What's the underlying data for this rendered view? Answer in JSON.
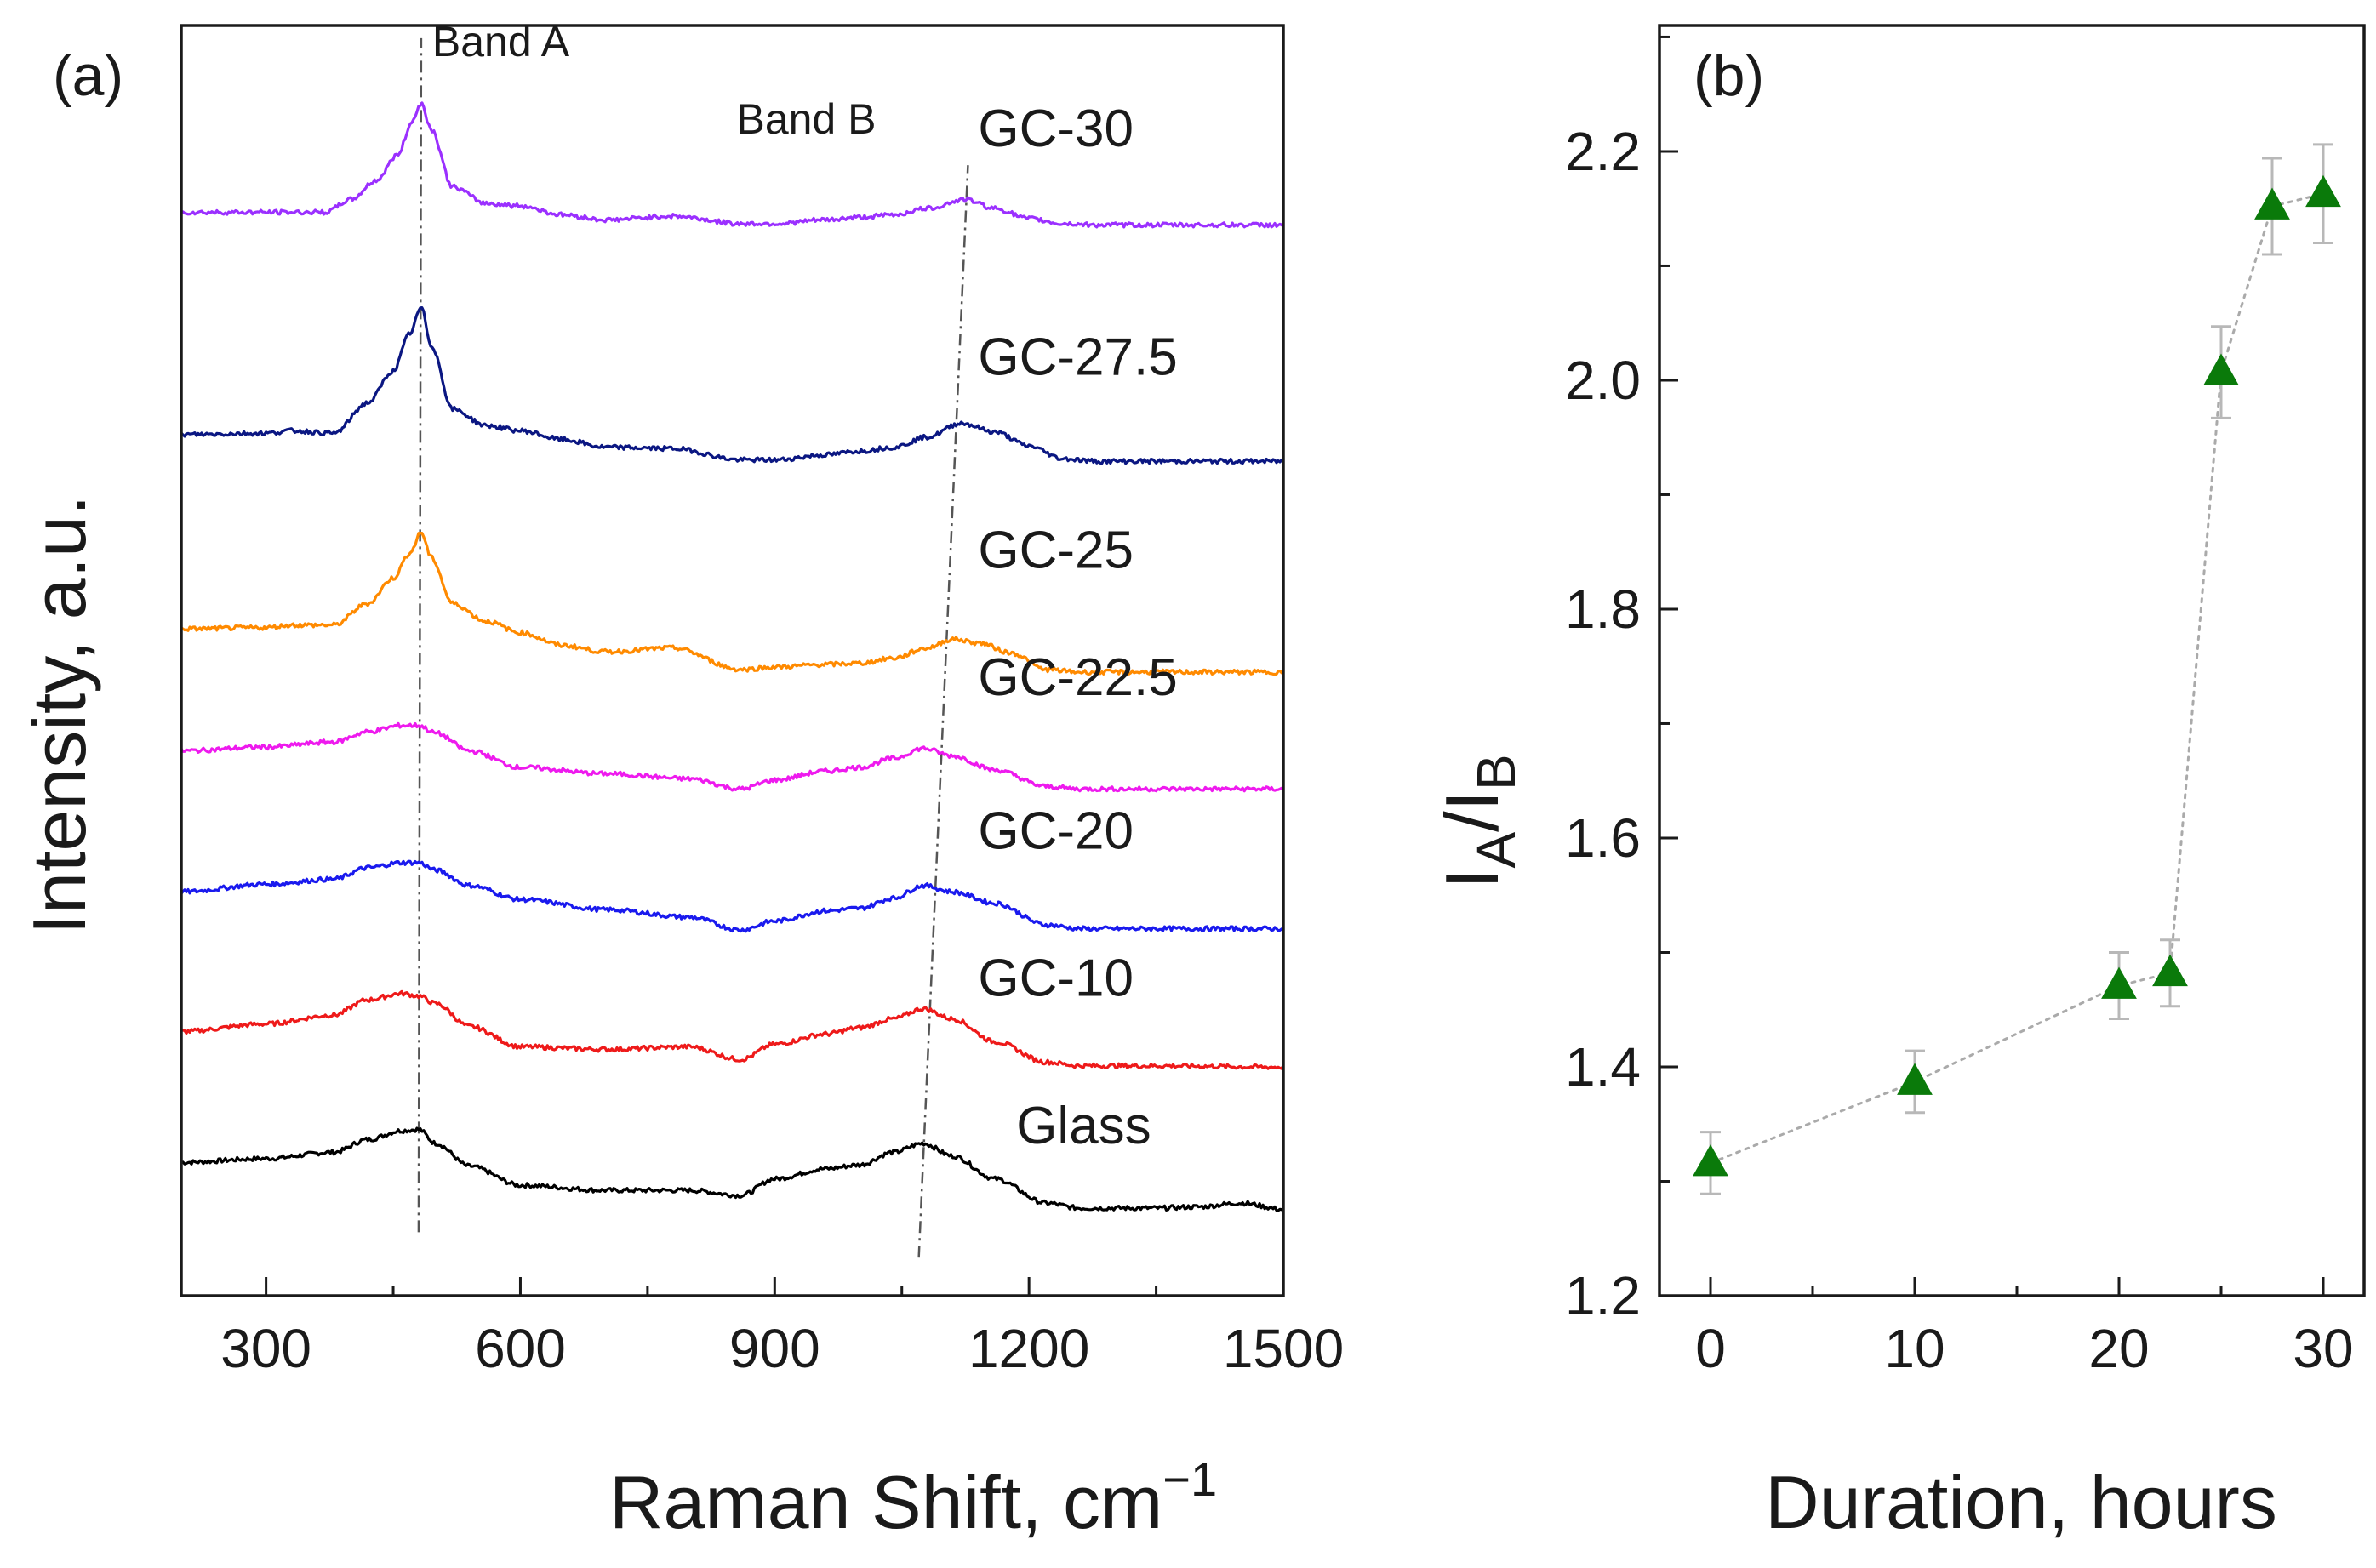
{
  "chart_data": [
    {
      "panel_label": "(a)",
      "type": "line",
      "xlabel": "Raman Shift, cm",
      "xlabel_superscript": "−1",
      "ylabel": "Intensity, a.u.",
      "xlim": [
        200,
        1500
      ],
      "ylim": [
        0,
        100
      ],
      "xticks": [
        300,
        600,
        900,
        1200,
        1500
      ],
      "xtick_labels": [
        "300",
        "600",
        "900",
        "1200",
        "1500"
      ],
      "y_tick_labels_shown": false,
      "annotations": [
        {
          "text": "Band A",
          "line_from": [
            480,
            5
          ],
          "line_to": [
            483,
            99
          ]
        },
        {
          "text": "Band B",
          "line_from": [
            1070,
            3
          ],
          "line_to": [
            1128,
            89
          ]
        }
      ],
      "series": [
        {
          "name": "Glass",
          "color": "#000000",
          "offset": 10.5,
          "points": [
            [
              200,
              0
            ],
            [
              300,
              0.3
            ],
            [
              380,
              0.8
            ],
            [
              420,
              1.8
            ],
            [
              460,
              2.5
            ],
            [
              480,
              2.6
            ],
            [
              500,
              1.5
            ],
            [
              540,
              -0.3
            ],
            [
              600,
              -1.8
            ],
            [
              700,
              -2.2
            ],
            [
              800,
              -2.2
            ],
            [
              860,
              -2.6
            ],
            [
              900,
              -1.3
            ],
            [
              960,
              -0.5
            ],
            [
              1000,
              -0.2
            ],
            [
              1040,
              0.8
            ],
            [
              1075,
              1.5
            ],
            [
              1110,
              0.5
            ],
            [
              1160,
              -1.3
            ],
            [
              1220,
              -3.2
            ],
            [
              1260,
              -3.6
            ],
            [
              1350,
              -3.6
            ],
            [
              1400,
              -3.5
            ],
            [
              1450,
              -3.2
            ],
            [
              1500,
              -3.7
            ]
          ]
        },
        {
          "name": "GC-10",
          "color": "#ee1a1a",
          "offset": 20.8,
          "points": [
            [
              200,
              0
            ],
            [
              300,
              0.6
            ],
            [
              380,
              1.3
            ],
            [
              420,
              2.5
            ],
            [
              460,
              3.0
            ],
            [
              480,
              2.8
            ],
            [
              500,
              2.2
            ],
            [
              540,
              0.4
            ],
            [
              600,
              -1.2
            ],
            [
              700,
              -1.4
            ],
            [
              800,
              -1.2
            ],
            [
              860,
              -2.2
            ],
            [
              900,
              -1.0
            ],
            [
              960,
              -0.2
            ],
            [
              1000,
              0.3
            ],
            [
              1040,
              1.0
            ],
            [
              1075,
              1.8
            ],
            [
              1110,
              1.0
            ],
            [
              1160,
              -0.8
            ],
            [
              1220,
              -2.4
            ],
            [
              1260,
              -2.7
            ],
            [
              1350,
              -2.7
            ],
            [
              1500,
              -2.8
            ]
          ]
        },
        {
          "name": "GC-20",
          "color": "#1a1aee",
          "offset": 31.8,
          "points": [
            [
              200,
              0
            ],
            [
              300,
              0.6
            ],
            [
              380,
              1.0
            ],
            [
              420,
              1.9
            ],
            [
              460,
              2.3
            ],
            [
              480,
              2.3
            ],
            [
              500,
              1.7
            ],
            [
              540,
              0.5
            ],
            [
              600,
              -0.6
            ],
            [
              700,
              -1.4
            ],
            [
              800,
              -2.0
            ],
            [
              860,
              -3.0
            ],
            [
              900,
              -2.3
            ],
            [
              960,
              -1.5
            ],
            [
              1000,
              -1.3
            ],
            [
              1040,
              -0.5
            ],
            [
              1075,
              0.5
            ],
            [
              1110,
              0.0
            ],
            [
              1160,
              -0.9
            ],
            [
              1220,
              -2.6
            ],
            [
              1260,
              -2.9
            ],
            [
              1350,
              -2.9
            ],
            [
              1500,
              -2.9
            ]
          ]
        },
        {
          "name": "GC-22.5",
          "color": "#ee1aee",
          "offset": 42.9,
          "points": [
            [
              200,
              0
            ],
            [
              300,
              0.3
            ],
            [
              380,
              0.7
            ],
            [
              420,
              1.5
            ],
            [
              460,
              2.0
            ],
            [
              480,
              2.0
            ],
            [
              500,
              1.4
            ],
            [
              540,
              0.0
            ],
            [
              600,
              -1.3
            ],
            [
              700,
              -1.8
            ],
            [
              800,
              -2.2
            ],
            [
              860,
              -3.0
            ],
            [
              900,
              -2.3
            ],
            [
              960,
              -1.6
            ],
            [
              1000,
              -1.3
            ],
            [
              1040,
              -0.6
            ],
            [
              1075,
              0.2
            ],
            [
              1110,
              -0.4
            ],
            [
              1160,
              -1.5
            ],
            [
              1220,
              -2.8
            ],
            [
              1260,
              -3.0
            ],
            [
              1350,
              -3.0
            ],
            [
              1500,
              -3.0
            ]
          ]
        },
        {
          "name": "GC-25",
          "color": "#ff8a00",
          "offset": 52.5,
          "points": [
            [
              200,
              0
            ],
            [
              300,
              0.1
            ],
            [
              330,
              0.3
            ],
            [
              380,
              0.3
            ],
            [
              420,
              2.0
            ],
            [
              450,
              4.0
            ],
            [
              470,
              6.0
            ],
            [
              483,
              7.6
            ],
            [
              495,
              5.6
            ],
            [
              520,
              2.0
            ],
            [
              560,
              0.6
            ],
            [
              600,
              -0.3
            ],
            [
              650,
              -1.3
            ],
            [
              700,
              -1.8
            ],
            [
              780,
              -1.5
            ],
            [
              860,
              -3.2
            ],
            [
              900,
              -3.0
            ],
            [
              960,
              -2.8
            ],
            [
              1000,
              -2.7
            ],
            [
              1040,
              -2.3
            ],
            [
              1080,
              -1.5
            ],
            [
              1110,
              -0.8
            ],
            [
              1140,
              -1.1
            ],
            [
              1180,
              -1.9
            ],
            [
              1220,
              -3.2
            ],
            [
              1260,
              -3.4
            ],
            [
              1350,
              -3.4
            ],
            [
              1500,
              -3.4
            ]
          ]
        },
        {
          "name": "GC-27.5",
          "color": "#0b1782",
          "offset": 67.8,
          "points": [
            [
              200,
              0
            ],
            [
              300,
              0.1
            ],
            [
              330,
              0.3
            ],
            [
              380,
              0.1
            ],
            [
              420,
              2.5
            ],
            [
              450,
              5.0
            ],
            [
              470,
              8.0
            ],
            [
              483,
              10.0
            ],
            [
              495,
              7.0
            ],
            [
              520,
              2.0
            ],
            [
              560,
              0.7
            ],
            [
              600,
              0.3
            ],
            [
              650,
              -0.4
            ],
            [
              700,
              -1.0
            ],
            [
              780,
              -1.1
            ],
            [
              860,
              -2.0
            ],
            [
              900,
              -2.0
            ],
            [
              960,
              -1.6
            ],
            [
              1000,
              -1.3
            ],
            [
              1040,
              -1.0
            ],
            [
              1080,
              -0.2
            ],
            [
              1120,
              0.9
            ],
            [
              1160,
              0.2
            ],
            [
              1200,
              -0.9
            ],
            [
              1240,
              -1.9
            ],
            [
              1280,
              -2.1
            ],
            [
              1350,
              -2.1
            ],
            [
              1500,
              -2.1
            ]
          ]
        },
        {
          "name": "GC-30",
          "color": "#9b30ff",
          "offset": 85.3,
          "points": [
            [
              200,
              0
            ],
            [
              300,
              0.0
            ],
            [
              370,
              0.0
            ],
            [
              400,
              1.0
            ],
            [
              430,
              2.5
            ],
            [
              455,
              4.5
            ],
            [
              473,
              7.2
            ],
            [
              483,
              8.6
            ],
            [
              495,
              6.5
            ],
            [
              520,
              2.0
            ],
            [
              560,
              0.7
            ],
            [
              600,
              0.5
            ],
            [
              650,
              -0.2
            ],
            [
              700,
              -0.6
            ],
            [
              780,
              -0.3
            ],
            [
              860,
              -0.9
            ],
            [
              900,
              -0.9
            ],
            [
              960,
              -0.6
            ],
            [
              1000,
              -0.4
            ],
            [
              1040,
              -0.2
            ],
            [
              1080,
              0.3
            ],
            [
              1125,
              1.0
            ],
            [
              1160,
              0.3
            ],
            [
              1200,
              -0.5
            ],
            [
              1240,
              -0.9
            ],
            [
              1280,
              -1.0
            ],
            [
              1350,
              -1.0
            ],
            [
              1500,
              -1.0
            ]
          ]
        }
      ],
      "curve_labels": [
        {
          "text": "GC-30",
          "x": 1140,
          "y": 90.5
        },
        {
          "text": "GC-27.5",
          "x": 1140,
          "y": 72.5
        },
        {
          "text": "GC-25",
          "x": 1140,
          "y": 57.3
        },
        {
          "text": "GC-22.5",
          "x": 1140,
          "y": 47.3
        },
        {
          "text": "GC-20",
          "x": 1140,
          "y": 35.2
        },
        {
          "text": "GC-10",
          "x": 1140,
          "y": 23.6
        },
        {
          "text": "Glass",
          "x": 1185,
          "y": 12.0
        }
      ]
    },
    {
      "panel_label": "(b)",
      "type": "scatter",
      "xlabel": "Duration, hours",
      "ylabel_main": "I",
      "ylabel_sub1": "A",
      "ylabel_slash": "/I",
      "ylabel_sub2": "B",
      "xlim": [
        -2.5,
        32
      ],
      "ylim": [
        1.2,
        2.31
      ],
      "xticks": [
        0,
        10,
        20,
        30
      ],
      "xtick_labels": [
        "0",
        "10",
        "20",
        "30"
      ],
      "yticks": [
        1.2,
        1.4,
        1.6,
        1.8,
        2.0,
        2.2
      ],
      "ytick_labels": [
        "1.2",
        "1.4",
        "1.6",
        "1.8",
        "2.0",
        "2.2"
      ],
      "marker": "triangle",
      "marker_color": "#0a7a0a",
      "connector_color": "#aaaaaa",
      "errorbar_color": "#b8b8b8",
      "points": [
        {
          "x": 0,
          "y": 1.316,
          "err": 0.027
        },
        {
          "x": 10,
          "y": 1.387,
          "err": 0.027
        },
        {
          "x": 20,
          "y": 1.471,
          "err": 0.029
        },
        {
          "x": 22.5,
          "y": 1.482,
          "err": 0.029
        },
        {
          "x": 25,
          "y": 2.007,
          "err": 0.04
        },
        {
          "x": 27.5,
          "y": 2.152,
          "err": 0.042
        },
        {
          "x": 30,
          "y": 2.163,
          "err": 0.043
        }
      ]
    }
  ]
}
